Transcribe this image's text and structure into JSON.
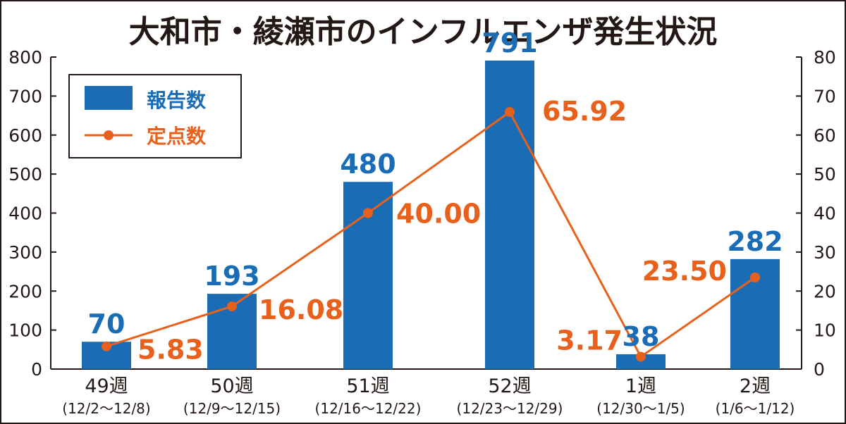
{
  "chart_data": {
    "type": "bar+line",
    "title": "大和市・綾瀬市のインフルエンザ発生状況",
    "categories": [
      "49週",
      "50週",
      "51週",
      "52週",
      "1週",
      "2週"
    ],
    "category_sublabels": [
      "(12/2〜12/8)",
      "(12/9〜12/15)",
      "(12/16〜12/22)",
      "(12/23〜12/29)",
      "(12/30〜1/5)",
      "(1/6〜1/12)"
    ],
    "series": [
      {
        "name": "報告数",
        "kind": "bar",
        "axis": "left",
        "color": "#1a6db5",
        "values": [
          70,
          193,
          480,
          791,
          38,
          282
        ],
        "labels": [
          "70",
          "193",
          "480",
          "791",
          "38",
          "282"
        ]
      },
      {
        "name": "定点数",
        "kind": "line",
        "axis": "right",
        "color": "#e8611c",
        "values": [
          5.83,
          16.08,
          40.0,
          65.92,
          3.17,
          23.5
        ],
        "labels": [
          "5.83",
          "16.08",
          "40.00",
          "65.92",
          "3.17",
          "23.50"
        ]
      }
    ],
    "y_left": {
      "min": 0,
      "max": 800,
      "ticks": [
        0,
        100,
        200,
        300,
        400,
        500,
        600,
        700,
        800
      ]
    },
    "y_right": {
      "min": 0,
      "max": 80,
      "ticks": [
        0,
        10,
        20,
        30,
        40,
        50,
        60,
        70,
        80
      ]
    },
    "grid": false,
    "legend": "top-left"
  }
}
